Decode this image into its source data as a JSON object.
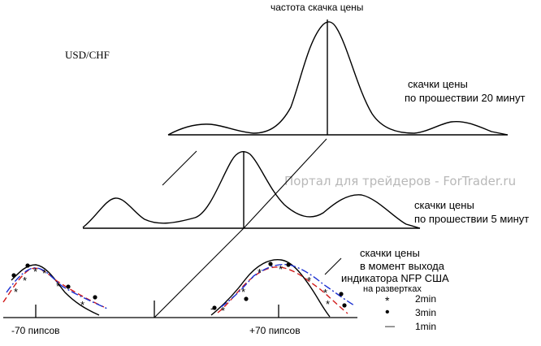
{
  "texts": {
    "title": "частота скачка цены",
    "pair": "USD/CHF",
    "curve1_line1": "скачки  цены",
    "curve1_line2": "по прошествии 20 минут",
    "curve2_line1": "скачки  цены",
    "curve2_line2": "по прошествии 5 минут",
    "curve3_line1": "скачки  цены",
    "curve3_line2": "в момент выхода",
    "curve3_line3": "индикатора NFP США",
    "curve3_line4": "на развертках",
    "watermark": "Портал для трейдеров - ForTrader.ru",
    "left_axis_label": "-70  пипсов",
    "right_axis_label": "+70  пипсов"
  },
  "legend": [
    {
      "symbol": "*",
      "label": "2min",
      "color": "#d11a1a"
    },
    {
      "symbol": "•",
      "label": "3min",
      "color": "#1a2fd1"
    },
    {
      "symbol": "—",
      "label": "1min",
      "color": "#000000"
    }
  ],
  "colors": {
    "ink": "#000000",
    "red": "#d11a1a",
    "blue": "#1a2fd1",
    "watermark": "#b8b8b8"
  }
}
